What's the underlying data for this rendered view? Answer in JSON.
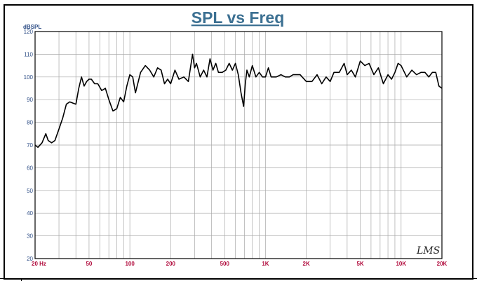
{
  "chart_data": {
    "type": "line",
    "title": "SPL vs Freq",
    "ylabel": "dBSPL",
    "xlabel": "",
    "xscale": "log",
    "xlim": [
      20,
      20000
    ],
    "ylim": [
      20,
      120
    ],
    "grid": true,
    "yticks": [
      "20",
      "30",
      "40",
      "50",
      "60",
      "70",
      "80",
      "90",
      "100",
      "110",
      "120"
    ],
    "xticks": [
      {
        "value": 20,
        "label": "20  Hz"
      },
      {
        "value": 50,
        "label": "50"
      },
      {
        "value": 100,
        "label": "100"
      },
      {
        "value": 200,
        "label": "200"
      },
      {
        "value": 500,
        "label": "500"
      },
      {
        "value": 1000,
        "label": "1K"
      },
      {
        "value": 2000,
        "label": "2K"
      },
      {
        "value": 5000,
        "label": "5K"
      },
      {
        "value": 10000,
        "label": "10K"
      },
      {
        "value": 20000,
        "label": "20K"
      }
    ],
    "colors": {
      "title": "#3c7092",
      "axis_text": "#2b4b84",
      "xtick_text": "#b0083a",
      "grid": "#a8a8a8",
      "line": "#000000"
    },
    "series": [
      {
        "x": [
          20,
          21,
          22.5,
          24,
          25,
          26.5,
          28,
          30,
          32,
          34,
          36,
          38,
          40,
          42,
          44,
          46,
          48,
          50,
          52,
          55,
          58,
          62,
          66,
          70,
          75,
          80,
          85,
          90,
          95,
          100,
          105,
          110,
          120,
          130,
          140,
          150,
          160,
          170,
          180,
          190,
          200,
          215,
          230,
          250,
          270,
          290,
          300,
          310,
          330,
          350,
          370,
          390,
          410,
          430,
          450,
          480,
          510,
          540,
          570,
          600,
          630,
          660,
          690,
          710,
          730,
          760,
          800,
          850,
          900,
          950,
          1000,
          1050,
          1100,
          1200,
          1300,
          1400,
          1500,
          1600,
          1800,
          2000,
          2200,
          2400,
          2600,
          2800,
          3000,
          3200,
          3500,
          3800,
          4000,
          4300,
          4600,
          5000,
          5400,
          5800,
          6300,
          6800,
          7400,
          8000,
          8500,
          9000,
          9500,
          10000,
          11000,
          12000,
          13000,
          14000,
          15000,
          16000,
          17000,
          18000,
          19000,
          20000
        ],
        "y": [
          70,
          69,
          71,
          75,
          72,
          71,
          72,
          77,
          82,
          88,
          89,
          88.5,
          88,
          95,
          100,
          96,
          98,
          99,
          99,
          97,
          97,
          94,
          95,
          90,
          85,
          86,
          91,
          89,
          96,
          101,
          100,
          93,
          102,
          105,
          103,
          100,
          104,
          103,
          97,
          99,
          97,
          103,
          99,
          100,
          98,
          110,
          104,
          106,
          100,
          103,
          100,
          108,
          103,
          106,
          102,
          102,
          103,
          106,
          103,
          106,
          101,
          93,
          87,
          97,
          103,
          100,
          105,
          100,
          102,
          100,
          100,
          104,
          100,
          100,
          101,
          100,
          100,
          101,
          101,
          98,
          98,
          101,
          97,
          100,
          98,
          102,
          102,
          106,
          101,
          103,
          100,
          107,
          105,
          106,
          101,
          104,
          97,
          101,
          99,
          102,
          106,
          105,
          100,
          103,
          101,
          102,
          102,
          100,
          102,
          102,
          96,
          95
        ]
      }
    ]
  },
  "logo_text": "LMS"
}
